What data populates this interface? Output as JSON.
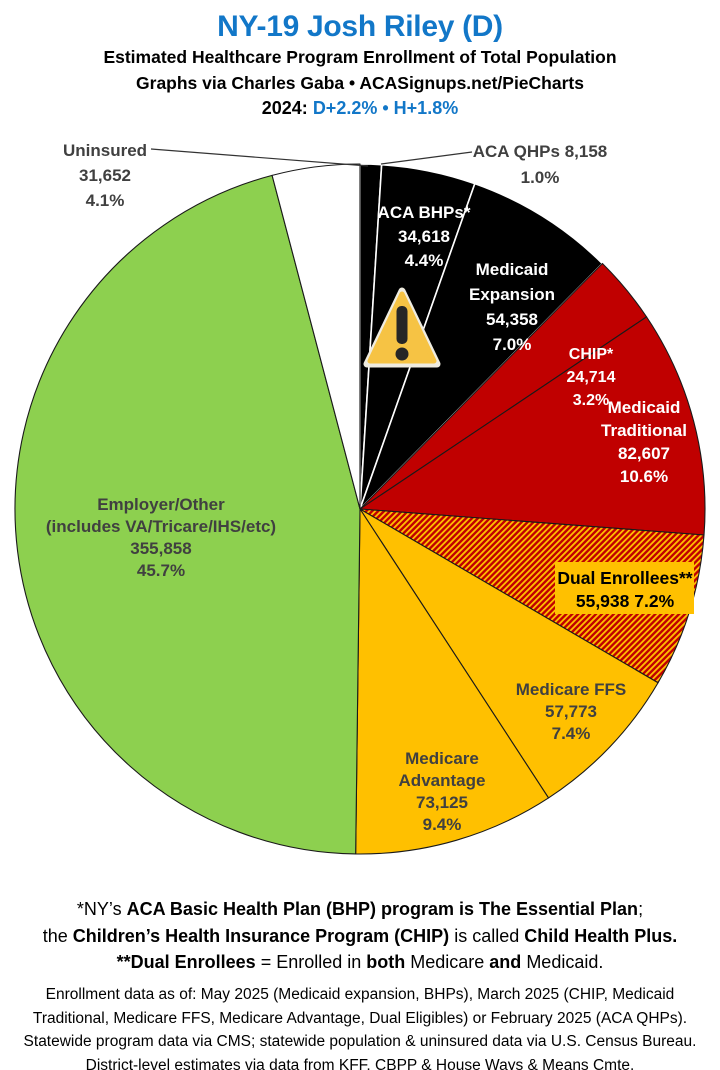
{
  "header": {
    "title": "NY-19 Josh Riley (D)",
    "subtitle": "Estimated Healthcare Program Enrollment of Total Population",
    "credit": "Graphs via Charles Gaba   •   ACASignups.net/PieCharts",
    "partisan_lean": {
      "segments": [
        {
          "t": "2024: ",
          "color": "#000000"
        },
        {
          "t": "D+2.2%",
          "color": "#1277C8"
        },
        {
          "t": "  •  ",
          "color": "#1277C8"
        },
        {
          "t": "H+1.8%",
          "color": "#1277C8"
        }
      ]
    }
  },
  "colors": {
    "title_blue": "#1277C8",
    "label_gray": "#404040",
    "pie_black": "#000000",
    "pie_red": "#C00000",
    "pie_gold": "#FFC000",
    "pie_green": "#8DD04F",
    "pie_white": "#FFFFFF",
    "warning_gold": "#F6C344",
    "dual_label_box": "#FFC000"
  },
  "chart_data": {
    "type": "pie",
    "title": "NY-19 Josh Riley (D) — Estimated Healthcare Program Enrollment of Total Population",
    "start_position": "12 o'clock, clockwise",
    "slices": [
      {
        "id": "aca-qhps",
        "label": "ACA QHPs",
        "value": 8158,
        "pct": 1.0,
        "color": "#000000",
        "display_lines": [
          "ACA QHPs 8,158",
          "1.0%"
        ]
      },
      {
        "id": "aca-bhps",
        "label": "ACA BHPs*",
        "value": 34618,
        "pct": 4.4,
        "color": "#000000",
        "display_lines": [
          "ACA BHPs*",
          "34,618",
          "4.4%"
        ]
      },
      {
        "id": "medicaid-expansion",
        "label": "Medicaid Expansion",
        "value": 54358,
        "pct": 7.0,
        "color": "#000000",
        "display_lines": [
          "Medicaid",
          "Expansion",
          "54,358",
          "7.0%"
        ]
      },
      {
        "id": "chip",
        "label": "CHIP*",
        "value": 24714,
        "pct": 3.2,
        "color": "#C00000",
        "display_lines": [
          "CHIP*",
          "24,714",
          "3.2%"
        ]
      },
      {
        "id": "medicaid-traditional",
        "label": "Medicaid Traditional",
        "value": 82607,
        "pct": 10.6,
        "color": "#C00000",
        "display_lines": [
          "Medicaid",
          "Traditional",
          "82,607",
          "10.6%"
        ]
      },
      {
        "id": "dual-enrollees",
        "label": "Dual Enrollees**",
        "value": 55938,
        "pct": 7.2,
        "color": "hatch-red-gold",
        "display_lines": [
          "Dual Enrollees**",
          "55,938 7.2%"
        ]
      },
      {
        "id": "medicare-ffs",
        "label": "Medicare FFS",
        "value": 57773,
        "pct": 7.4,
        "color": "#FFC000",
        "display_lines": [
          "Medicare FFS",
          "57,773",
          "7.4%"
        ]
      },
      {
        "id": "medicare-advantage",
        "label": "Medicare Advantage",
        "value": 73125,
        "pct": 9.4,
        "color": "#FFC000",
        "display_lines": [
          "Medicare",
          "Advantage",
          "73,125",
          "9.4%"
        ]
      },
      {
        "id": "employer-other",
        "label": "Employer/Other (includes VA/Tricare/IHS/etc)",
        "value": 355858,
        "pct": 45.7,
        "color": "#8DD04F",
        "display_lines": [
          "Employer/Other",
          "(includes VA/Tricare/IHS/etc)",
          "355,858",
          "45.7%"
        ]
      },
      {
        "id": "uninsured",
        "label": "Uninsured",
        "value": 31652,
        "pct": 4.1,
        "color": "#FFFFFF",
        "display_lines": [
          "Uninsured",
          "31,652",
          "4.1%"
        ]
      }
    ]
  },
  "footnotes": {
    "definitions": [
      [
        {
          "t": "*NY’s ",
          "b": 0
        },
        {
          "t": "ACA Basic Health Plan (BHP) program is The Essential Plan",
          "b": 1
        },
        {
          "t": ";",
          "b": 0
        }
      ],
      [
        {
          "t": "the ",
          "b": 0
        },
        {
          "t": "Children’s Health Insurance Program (CHIP)",
          "b": 1
        },
        {
          "t": " is called ",
          "b": 0
        },
        {
          "t": "Child Health Plus.",
          "b": 1
        }
      ],
      [
        {
          "t": "**Dual Enrollees",
          "b": 1
        },
        {
          "t": " = Enrolled in ",
          "b": 0
        },
        {
          "t": "both",
          "b": 1
        },
        {
          "t": " Medicare ",
          "b": 0
        },
        {
          "t": "and",
          "b": 1
        },
        {
          "t": " Medicaid.",
          "b": 0
        }
      ]
    ],
    "sources": [
      "Enrollment data as of: May 2025 (Medicaid expansion, BHPs), March 2025 (CHIP, Medicaid",
      "Traditional, Medicare FFS, Medicare Advantage, Dual Eligibles) or February 2025 (ACA QHPs).",
      "Statewide program data via CMS; statewide population & uninsured data via U.S. Census Bureau.",
      "District-level estimates via data from KFF, CBPP & House Ways & Means Cmte."
    ]
  }
}
